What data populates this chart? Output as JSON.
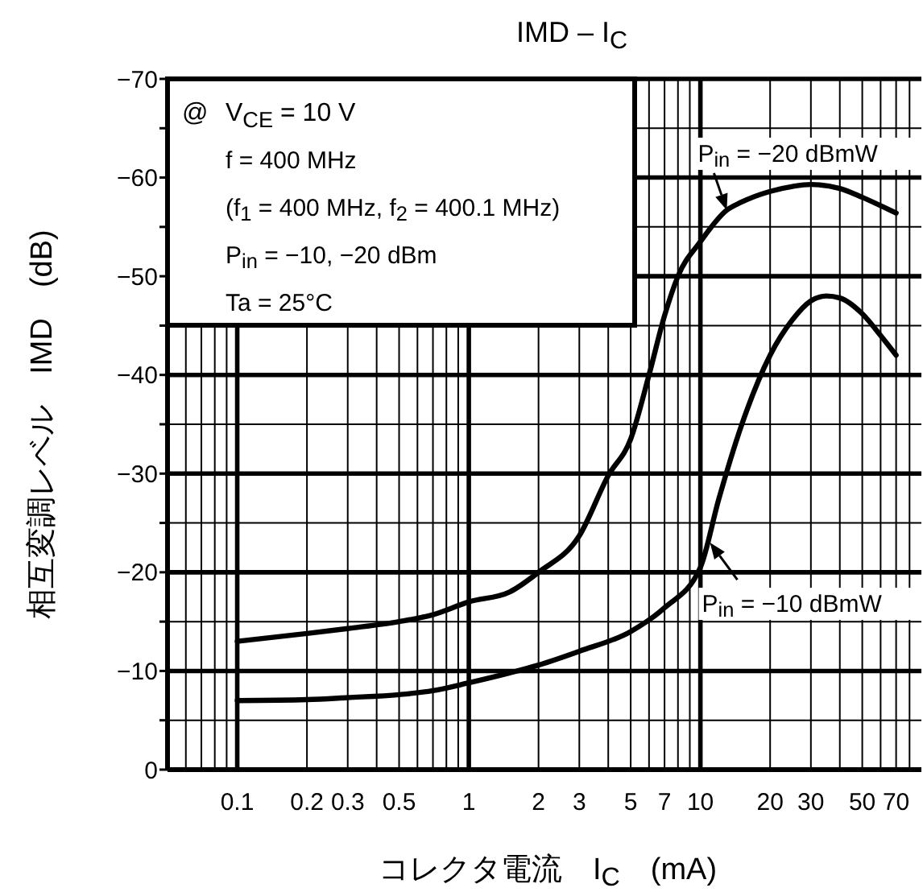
{
  "chart_data": {
    "type": "line",
    "title": "IMD – I$_{C}$",
    "xlabel": "コレクタ電流　I$_{C}$　(mA)",
    "ylabel": "相互変調レベル　IMD　(dB)",
    "log": "x",
    "grid": true,
    "marker": "none",
    "line_style": "solid",
    "xlim": [
      0.05,
      90
    ],
    "ylim": [
      0,
      -70
    ],
    "xticks": [
      {
        "value": 0.06,
        "label": null
      },
      {
        "value": 0.07,
        "label": null
      },
      {
        "value": 0.08,
        "label": null
      },
      {
        "value": 0.09,
        "label": null
      },
      0.1,
      0.2,
      0.3,
      {
        "value": 0.4,
        "label": null
      },
      0.5,
      {
        "value": 0.6,
        "label": null
      },
      {
        "value": 0.7,
        "label": null
      },
      {
        "value": 0.8,
        "label": null
      },
      {
        "value": 0.9,
        "label": null
      },
      1,
      2,
      3,
      {
        "value": 4,
        "label": null
      },
      5,
      {
        "value": 6,
        "label": null
      },
      7,
      {
        "value": 8,
        "label": null
      },
      {
        "value": 9,
        "label": null
      },
      10,
      20,
      30,
      {
        "value": 40,
        "label": null
      },
      50,
      {
        "value": 60,
        "label": null
      },
      70,
      {
        "value": 80,
        "label": null
      }
    ],
    "yticks": [
      {
        "value": 0,
        "label": "0"
      },
      {
        "value": -5,
        "label": null
      },
      {
        "value": -10,
        "label": "−10"
      },
      {
        "value": -15,
        "label": null
      },
      {
        "value": -20,
        "label": "−20"
      },
      {
        "value": -25,
        "label": null
      },
      {
        "value": -30,
        "label": "−30"
      },
      {
        "value": -35,
        "label": null
      },
      {
        "value": -40,
        "label": "−40"
      },
      {
        "value": -45,
        "label": null
      },
      {
        "value": -50,
        "label": "−50"
      },
      {
        "value": -55,
        "label": null
      },
      {
        "value": -60,
        "label": "−60"
      },
      {
        "value": -65,
        "label": null
      },
      {
        "value": -70,
        "label": "−70"
      }
    ],
    "series": [
      {
        "color": "#000000",
        "x": [
          0.1,
          0.2,
          0.3,
          0.5,
          0.7,
          1,
          1.5,
          2,
          3,
          4,
          5,
          6,
          7,
          8,
          10,
          13,
          15,
          20,
          25,
          30,
          40,
          50,
          70
        ],
        "values": [
          -13,
          -13.8,
          -14.3,
          -15,
          -15.7,
          -17,
          -18,
          -20,
          -23.7,
          -29.8,
          -33.5,
          -40,
          -46,
          -50,
          -53.5,
          -56.7,
          -57.5,
          -58.6,
          -59.1,
          -59.3,
          -58.9,
          -58,
          -56.4
        ]
      },
      {
        "color": "#000000",
        "x": [
          0.1,
          0.2,
          0.3,
          0.5,
          0.7,
          1,
          1.5,
          2,
          3,
          5,
          7,
          10,
          12,
          15,
          20,
          25,
          30,
          35,
          40,
          50,
          60,
          70
        ],
        "values": [
          -7,
          -7.1,
          -7.3,
          -7.6,
          -8,
          -8.8,
          -9.8,
          -10.6,
          -12,
          -14,
          -16.4,
          -20.5,
          -27.4,
          -34.8,
          -42,
          -45.6,
          -47.5,
          -48,
          -47.8,
          -46.2,
          -44,
          -42
        ]
      }
    ],
    "annotations": [
      "@",
      "V$_{CE}$ = 10 V",
      "f = 400 MHz",
      "(f$_{1}$ = 400 MHz, f$_{2}$ = 400.1 MHz)",
      "P$_{in}$ = −10, −20 dBm",
      "Ta = 25°C",
      {
        "text": "P$_{in}$ = −20 dBmW",
        "x": 13,
        "y": -56.7
      },
      {
        "text": "P$_{in}$ = −10 dBmW",
        "x": 11,
        "y": -23
      }
    ]
  }
}
